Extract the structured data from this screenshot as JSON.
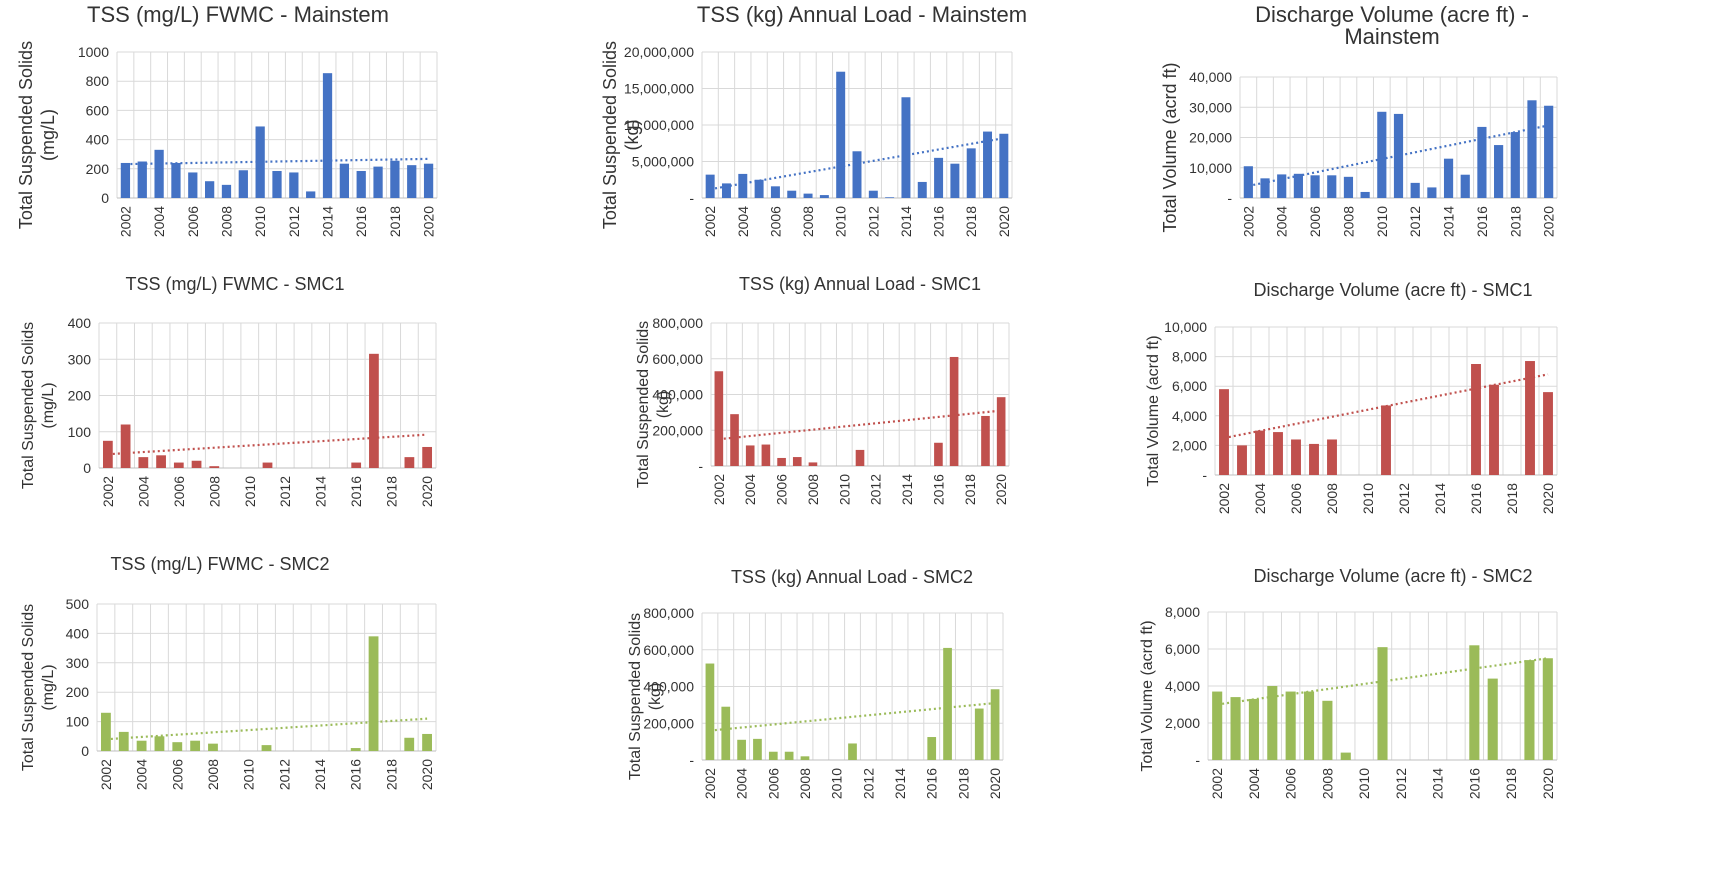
{
  "colors": {
    "mainstem": "#4472c4",
    "smc1": "#c0504d",
    "smc2": "#9bbb59",
    "grid": "#d9d9d9",
    "text": "#333333"
  },
  "chart_data": [
    {
      "type": "bar",
      "title": "TSS (mg/L) FWMC - Mainstem",
      "ylabel": "Total Suspended Solids (mg/L)",
      "xlabel": "",
      "years": [
        2002,
        2003,
        2004,
        2005,
        2006,
        2007,
        2008,
        2009,
        2010,
        2011,
        2012,
        2013,
        2014,
        2015,
        2016,
        2017,
        2018,
        2019,
        2020
      ],
      "values": [
        240,
        250,
        330,
        240,
        175,
        115,
        90,
        190,
        490,
        185,
        175,
        45,
        855,
        235,
        185,
        215,
        255,
        225,
        235
      ],
      "ylim": [
        0,
        1000
      ],
      "yticks": [
        "0",
        "200",
        "400",
        "600",
        "800",
        "1000"
      ],
      "xticks": [
        "2002",
        "2004",
        "2006",
        "2008",
        "2010",
        "2012",
        "2014",
        "2016",
        "2018",
        "2020"
      ],
      "trend": [
        232,
        268
      ],
      "series_color": "mainstem",
      "grid": true
    },
    {
      "type": "bar",
      "title": "TSS (kg) Annual Load - Mainstem",
      "ylabel": "Total Suspended Solids (kg)",
      "xlabel": "",
      "years": [
        2002,
        2003,
        2004,
        2005,
        2006,
        2007,
        2008,
        2009,
        2010,
        2011,
        2012,
        2013,
        2014,
        2015,
        2016,
        2017,
        2018,
        2019,
        2020
      ],
      "values": [
        3200000,
        2000000,
        3300000,
        2500000,
        1600000,
        1000000,
        600000,
        400000,
        17300000,
        6400000,
        1000000,
        100000,
        13800000,
        2200000,
        5500000,
        4700000,
        6800000,
        9100000,
        8800000
      ],
      "ylim": [
        0,
        20000000
      ],
      "yticks": [
        "-",
        "5,000,000",
        "10,000,000",
        "15,000,000",
        "20,000,000"
      ],
      "xticks": [
        "2002",
        "2004",
        "2006",
        "2008",
        "2010",
        "2012",
        "2014",
        "2016",
        "2018",
        "2020"
      ],
      "trend": [
        1200000,
        8200000
      ],
      "series_color": "mainstem",
      "grid": true
    },
    {
      "type": "bar",
      "title": "Discharge Volume (acre ft) - Mainstem",
      "ylabel": "Total Volume (acrd ft)",
      "xlabel": "",
      "years": [
        2002,
        2003,
        2004,
        2005,
        2006,
        2007,
        2008,
        2009,
        2010,
        2011,
        2012,
        2013,
        2014,
        2015,
        2016,
        2017,
        2018,
        2019,
        2020
      ],
      "values": [
        10500,
        6500,
        7800,
        8000,
        7500,
        7500,
        7000,
        2000,
        28500,
        27800,
        5000,
        3500,
        13000,
        7700,
        23500,
        17500,
        21800,
        32300,
        30500
      ],
      "ylim": [
        0,
        40000
      ],
      "yticks": [
        "-",
        "10,000",
        "20,000",
        "30,000",
        "40,000"
      ],
      "xticks": [
        "2002",
        "2004",
        "2006",
        "2008",
        "2010",
        "2012",
        "2014",
        "2016",
        "2018",
        "2020"
      ],
      "trend": [
        4000,
        24000
      ],
      "series_color": "mainstem",
      "grid": true
    },
    {
      "type": "bar",
      "title": "TSS (mg/L) FWMC - SMC1",
      "ylabel": "Total Suspended Solids (mg/L)",
      "xlabel": "",
      "years": [
        2002,
        2003,
        2004,
        2005,
        2006,
        2007,
        2008,
        2009,
        2010,
        2011,
        2012,
        2013,
        2014,
        2015,
        2016,
        2017,
        2018,
        2019,
        2020
      ],
      "values": [
        75,
        120,
        30,
        35,
        15,
        20,
        5,
        0,
        0,
        15,
        0,
        0,
        0,
        0,
        15,
        315,
        0,
        30,
        58
      ],
      "ylim": [
        0,
        400
      ],
      "yticks": [
        "0",
        "100",
        "200",
        "300",
        "400"
      ],
      "xticks": [
        "2002",
        "2004",
        "2006",
        "2008",
        "2010",
        "2012",
        "2014",
        "2016",
        "2018",
        "2020"
      ],
      "trend": [
        38,
        92
      ],
      "series_color": "smc1",
      "grid": true
    },
    {
      "type": "bar",
      "title": "TSS (kg) Annual Load - SMC1",
      "ylabel": "Total Suspended Solids (kg)",
      "xlabel": "",
      "years": [
        2002,
        2003,
        2004,
        2005,
        2006,
        2007,
        2008,
        2009,
        2010,
        2011,
        2012,
        2013,
        2014,
        2015,
        2016,
        2017,
        2018,
        2019,
        2020
      ],
      "values": [
        530000,
        290000,
        115000,
        120000,
        45000,
        50000,
        20000,
        0,
        0,
        90000,
        0,
        0,
        0,
        0,
        130000,
        610000,
        0,
        280000,
        385000
      ],
      "ylim": [
        0,
        800000
      ],
      "yticks": [
        "-",
        "200,000",
        "400,000",
        "600,000",
        "800,000"
      ],
      "xticks": [
        "2002",
        "2004",
        "2006",
        "2008",
        "2010",
        "2012",
        "2014",
        "2016",
        "2018",
        "2020"
      ],
      "trend": [
        150000,
        310000
      ],
      "series_color": "smc1",
      "grid": true
    },
    {
      "type": "bar",
      "title": "Discharge Volume (acre ft) - SMC1",
      "ylabel": "Total Volume (acrd ft)",
      "xlabel": "",
      "years": [
        2002,
        2003,
        2004,
        2005,
        2006,
        2007,
        2008,
        2009,
        2010,
        2011,
        2012,
        2013,
        2014,
        2015,
        2016,
        2017,
        2018,
        2019,
        2020
      ],
      "values": [
        5800,
        2000,
        3000,
        2900,
        2400,
        2100,
        2400,
        0,
        0,
        4700,
        0,
        0,
        0,
        0,
        7500,
        6100,
        0,
        7700,
        5600
      ],
      "ylim": [
        0,
        10000
      ],
      "yticks": [
        "-",
        "2,000",
        "4,000",
        "6,000",
        "8,000",
        "10,000"
      ],
      "xticks": [
        "2002",
        "2004",
        "2006",
        "2008",
        "2010",
        "2012",
        "2014",
        "2016",
        "2018",
        "2020"
      ],
      "trend": [
        2500,
        6800
      ],
      "series_color": "smc1",
      "grid": true
    },
    {
      "type": "bar",
      "title": "TSS (mg/L) FWMC - SMC2",
      "ylabel": "Total Suspended Solids (mg/L)",
      "xlabel": "",
      "years": [
        2002,
        2003,
        2004,
        2005,
        2006,
        2007,
        2008,
        2009,
        2010,
        2011,
        2012,
        2013,
        2014,
        2015,
        2016,
        2017,
        2018,
        2019,
        2020
      ],
      "values": [
        130,
        65,
        35,
        50,
        30,
        35,
        25,
        0,
        0,
        20,
        0,
        0,
        0,
        0,
        10,
        390,
        0,
        45,
        58
      ],
      "ylim": [
        0,
        500
      ],
      "yticks": [
        "0",
        "100",
        "200",
        "300",
        "400",
        "500"
      ],
      "xticks": [
        "2002",
        "2004",
        "2006",
        "2008",
        "2010",
        "2012",
        "2014",
        "2016",
        "2018",
        "2020"
      ],
      "trend": [
        40,
        110
      ],
      "series_color": "smc2",
      "grid": true
    },
    {
      "type": "bar",
      "title": "TSS (kg) Annual Load - SMC2",
      "ylabel": "Total Suspended Solids (kg)",
      "xlabel": "",
      "years": [
        2002,
        2003,
        2004,
        2005,
        2006,
        2007,
        2008,
        2009,
        2010,
        2011,
        2012,
        2013,
        2014,
        2015,
        2016,
        2017,
        2018,
        2019,
        2020
      ],
      "values": [
        525000,
        290000,
        110000,
        115000,
        45000,
        45000,
        20000,
        0,
        0,
        90000,
        0,
        0,
        0,
        0,
        125000,
        610000,
        0,
        280000,
        385000
      ],
      "ylim": [
        0,
        800000
      ],
      "yticks": [
        "-",
        "200,000",
        "400,000",
        "600,000",
        "800,000"
      ],
      "xticks": [
        "2002",
        "2004",
        "2006",
        "2008",
        "2010",
        "2012",
        "2014",
        "2016",
        "2018",
        "2020"
      ],
      "trend": [
        160000,
        310000
      ],
      "series_color": "smc2",
      "grid": true
    },
    {
      "type": "bar",
      "title": "Discharge Volume (acre ft) - SMC2",
      "ylabel": "Total Volume (acrd ft)",
      "xlabel": "",
      "years": [
        2002,
        2003,
        2004,
        2005,
        2006,
        2007,
        2008,
        2009,
        2010,
        2011,
        2012,
        2013,
        2014,
        2015,
        2016,
        2017,
        2018,
        2019,
        2020
      ],
      "values": [
        3700,
        3400,
        3300,
        4000,
        3700,
        3700,
        3200,
        400,
        0,
        6100,
        0,
        0,
        0,
        0,
        6200,
        4400,
        0,
        5400,
        5500
      ],
      "ylim": [
        0,
        8000
      ],
      "yticks": [
        "-",
        "2,000",
        "4,000",
        "6,000",
        "8,000"
      ],
      "xticks": [
        "2002",
        "2004",
        "2006",
        "2008",
        "2010",
        "2012",
        "2014",
        "2016",
        "2018",
        "2020"
      ],
      "trend": [
        3000,
        5500
      ],
      "series_color": "smc2",
      "grid": true
    }
  ]
}
